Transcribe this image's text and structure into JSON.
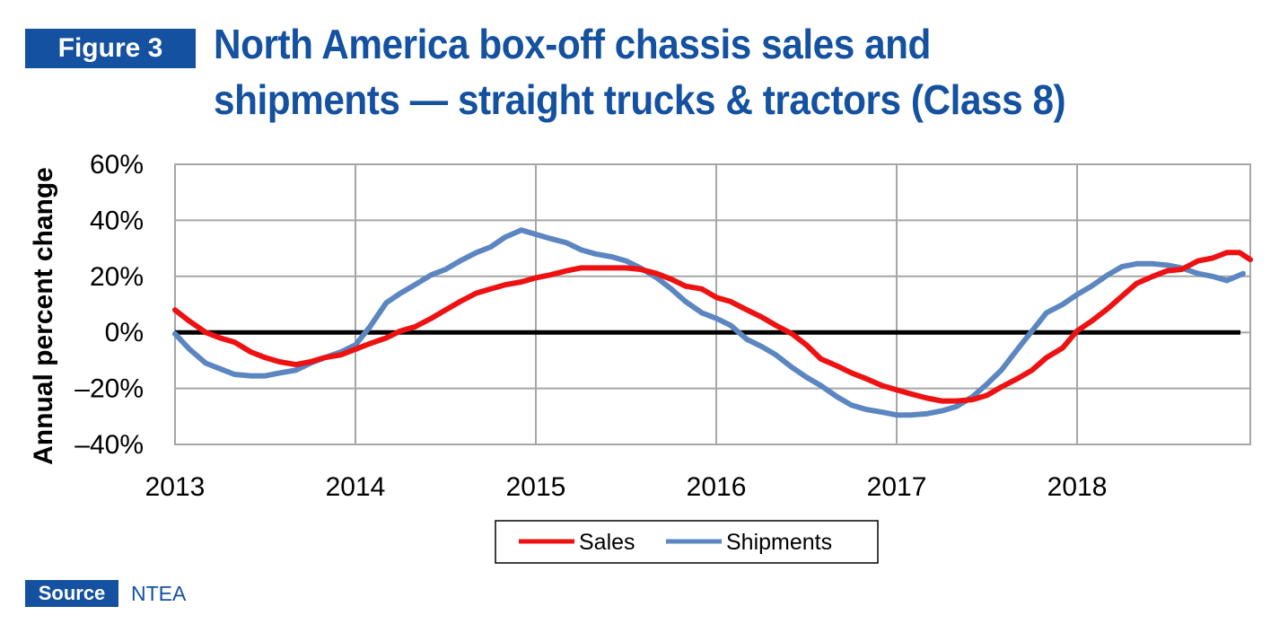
{
  "figure_label": "Figure 3",
  "title_line1": "North America box-off chassis sales and",
  "title_line2": "shipments — straight trucks & tractors (Class 8)",
  "source_label": "Source",
  "source_value": "NTEA",
  "colors": {
    "brand_blue": "#1451a0",
    "sales": "#ee1111",
    "shipments": "#5b86c1",
    "zero_line": "#000000",
    "grid": "#a6a6a6"
  },
  "chart_data": {
    "type": "line",
    "xlabel": "",
    "ylabel": "Annual percent change",
    "ylim": [
      -40,
      60
    ],
    "xlim": [
      2013,
      2018.92
    ],
    "y_ticks": [
      60,
      40,
      20,
      0,
      -20,
      -40
    ],
    "y_tick_labels": [
      "60%",
      "40%",
      "20%",
      "0%",
      "–20%",
      "–40%"
    ],
    "x_ticks": [
      2013,
      2014,
      2015,
      2016,
      2017,
      2018
    ],
    "x_tick_labels": [
      "2013",
      "2014",
      "2015",
      "2016",
      "2017",
      "2018"
    ],
    "grid": true,
    "legend_position": "bottom-center",
    "series": [
      {
        "name": "Sales",
        "points": [
          [
            2013.0,
            8
          ],
          [
            2013.08,
            4
          ],
          [
            2013.17,
            0
          ],
          [
            2013.25,
            -2
          ],
          [
            2013.33,
            -3.5
          ],
          [
            2013.42,
            -7
          ],
          [
            2013.5,
            -9
          ],
          [
            2013.58,
            -10.5
          ],
          [
            2013.67,
            -11.5
          ],
          [
            2013.75,
            -10.5
          ],
          [
            2013.83,
            -9
          ],
          [
            2013.92,
            -8
          ],
          [
            2014.0,
            -6
          ],
          [
            2014.08,
            -4
          ],
          [
            2014.17,
            -2
          ],
          [
            2014.25,
            0.5
          ],
          [
            2014.33,
            2
          ],
          [
            2014.42,
            5
          ],
          [
            2014.5,
            8
          ],
          [
            2014.58,
            11
          ],
          [
            2014.67,
            14
          ],
          [
            2014.75,
            15.5
          ],
          [
            2014.83,
            17
          ],
          [
            2014.92,
            18
          ],
          [
            2015.0,
            19.5
          ],
          [
            2015.08,
            20.5
          ],
          [
            2015.17,
            22
          ],
          [
            2015.25,
            23
          ],
          [
            2015.33,
            23
          ],
          [
            2015.42,
            23
          ],
          [
            2015.5,
            23
          ],
          [
            2015.58,
            22.5
          ],
          [
            2015.67,
            21
          ],
          [
            2015.75,
            19
          ],
          [
            2015.83,
            16.5
          ],
          [
            2015.92,
            15.5
          ],
          [
            2016.0,
            12.5
          ],
          [
            2016.08,
            11
          ],
          [
            2016.17,
            8
          ],
          [
            2016.25,
            5.5
          ],
          [
            2016.33,
            2.5
          ],
          [
            2016.42,
            -0.5
          ],
          [
            2016.5,
            -4.5
          ],
          [
            2016.58,
            -9.5
          ],
          [
            2016.67,
            -12
          ],
          [
            2016.75,
            -14.5
          ],
          [
            2016.83,
            -16.5
          ],
          [
            2016.92,
            -19
          ],
          [
            2017.0,
            -20.5
          ],
          [
            2017.08,
            -22
          ],
          [
            2017.17,
            -23.5
          ],
          [
            2017.25,
            -24.5
          ],
          [
            2017.33,
            -24.5
          ],
          [
            2017.42,
            -24
          ],
          [
            2017.5,
            -22.5
          ],
          [
            2017.58,
            -19.5
          ],
          [
            2017.67,
            -16.5
          ],
          [
            2017.75,
            -13.5
          ],
          [
            2017.83,
            -9
          ],
          [
            2017.92,
            -5.5
          ],
          [
            2018.0,
            0.5
          ],
          [
            2018.08,
            4
          ],
          [
            2018.17,
            8.5
          ],
          [
            2018.25,
            13
          ],
          [
            2018.33,
            17.5
          ],
          [
            2018.42,
            20
          ],
          [
            2018.5,
            22
          ],
          [
            2018.58,
            22.5
          ],
          [
            2018.67,
            25.5
          ],
          [
            2018.75,
            26.5
          ],
          [
            2018.83,
            28.5
          ],
          [
            2018.9,
            28.5
          ],
          [
            2018.96,
            26
          ]
        ]
      },
      {
        "name": "Shipments",
        "points": [
          [
            2013.0,
            -0.5
          ],
          [
            2013.08,
            -6
          ],
          [
            2013.17,
            -11
          ],
          [
            2013.25,
            -13
          ],
          [
            2013.33,
            -15
          ],
          [
            2013.42,
            -15.5
          ],
          [
            2013.5,
            -15.5
          ],
          [
            2013.58,
            -14.5
          ],
          [
            2013.67,
            -13.5
          ],
          [
            2013.75,
            -11
          ],
          [
            2013.83,
            -9
          ],
          [
            2013.92,
            -7
          ],
          [
            2014.0,
            -4.5
          ],
          [
            2014.08,
            2
          ],
          [
            2014.17,
            10.5
          ],
          [
            2014.25,
            14
          ],
          [
            2014.33,
            17
          ],
          [
            2014.42,
            20.5
          ],
          [
            2014.5,
            22.5
          ],
          [
            2014.58,
            25.5
          ],
          [
            2014.67,
            28.5
          ],
          [
            2014.75,
            30.5
          ],
          [
            2014.83,
            34
          ],
          [
            2014.92,
            36.5
          ],
          [
            2015.0,
            35
          ],
          [
            2015.08,
            33.5
          ],
          [
            2015.17,
            32
          ],
          [
            2015.25,
            29.5
          ],
          [
            2015.33,
            28
          ],
          [
            2015.42,
            27
          ],
          [
            2015.5,
            25.5
          ],
          [
            2015.58,
            23
          ],
          [
            2015.67,
            19.5
          ],
          [
            2015.75,
            15.5
          ],
          [
            2015.83,
            11
          ],
          [
            2015.92,
            7
          ],
          [
            2016.0,
            5
          ],
          [
            2016.08,
            2.5
          ],
          [
            2016.17,
            -2.5
          ],
          [
            2016.25,
            -5
          ],
          [
            2016.33,
            -8
          ],
          [
            2016.42,
            -12.5
          ],
          [
            2016.5,
            -16
          ],
          [
            2016.58,
            -19
          ],
          [
            2016.67,
            -23
          ],
          [
            2016.75,
            -26
          ],
          [
            2016.83,
            -27.5
          ],
          [
            2016.92,
            -28.5
          ],
          [
            2017.0,
            -29.5
          ],
          [
            2017.08,
            -29.5
          ],
          [
            2017.17,
            -29
          ],
          [
            2017.25,
            -28
          ],
          [
            2017.33,
            -26.5
          ],
          [
            2017.42,
            -23
          ],
          [
            2017.5,
            -18.5
          ],
          [
            2017.58,
            -13.5
          ],
          [
            2017.67,
            -6
          ],
          [
            2017.75,
            0.5
          ],
          [
            2017.83,
            7
          ],
          [
            2017.92,
            10
          ],
          [
            2018.0,
            13.5
          ],
          [
            2018.08,
            16.5
          ],
          [
            2018.17,
            20.5
          ],
          [
            2018.25,
            23.5
          ],
          [
            2018.33,
            24.5
          ],
          [
            2018.42,
            24.5
          ],
          [
            2018.5,
            24
          ],
          [
            2018.58,
            23
          ],
          [
            2018.67,
            21
          ],
          [
            2018.75,
            20
          ],
          [
            2018.83,
            18.5
          ],
          [
            2018.92,
            21
          ]
        ]
      }
    ]
  }
}
